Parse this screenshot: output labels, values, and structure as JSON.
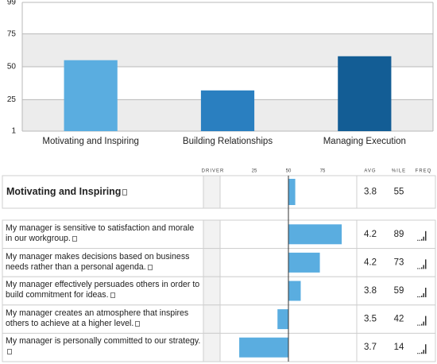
{
  "chart_data": {
    "type": "bar",
    "categories": [
      "Motivating and Inspiring",
      "Building Relationships",
      "Managing Execution"
    ],
    "values": [
      55,
      32,
      58
    ],
    "colors": [
      "#5aade0",
      "#2a7fc0",
      "#135d95"
    ],
    "ylim": [
      1,
      99
    ],
    "yticks": [
      1,
      25,
      50,
      75,
      99
    ],
    "grid": true
  },
  "table": {
    "headers": {
      "driver": "DRIVER",
      "avg": "AVG",
      "percentile": "%ILE",
      "freq": "FREQ"
    },
    "driver_ticks": [
      25,
      50,
      75
    ],
    "driver_range": [
      0,
      100
    ],
    "bar_color": "#5aade0",
    "group": {
      "label": "Motivating and Inspiring",
      "avg": 3.8,
      "percentile": 55
    },
    "rows": [
      {
        "text": "My manager is sensitive to satisfaction and morale in our workgroup.",
        "avg": 4.2,
        "percentile": 89
      },
      {
        "text": "My manager makes decisions based on business needs rather than a personal agenda.",
        "avg": 4.2,
        "percentile": 73
      },
      {
        "text": "My manager effectively persuades others in order to build commitment for ideas.",
        "avg": 3.8,
        "percentile": 59
      },
      {
        "text": "My manager creates an atmosphere that inspires others to achieve at a higher level.",
        "avg": 3.5,
        "percentile": 42
      },
      {
        "text": "My manager is personally committed to our strategy.",
        "avg": 3.7,
        "percentile": 14
      }
    ]
  }
}
